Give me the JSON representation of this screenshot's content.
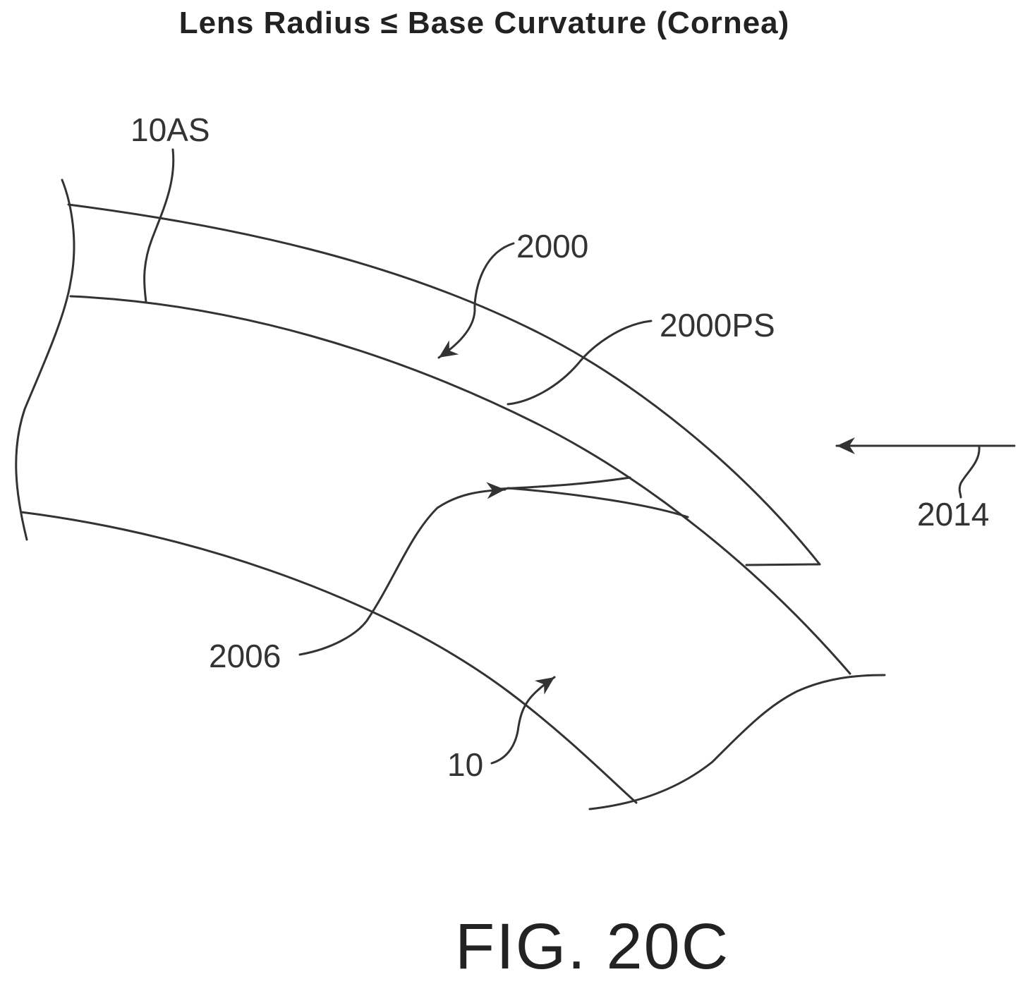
{
  "title": "Lens Radius ≤ Base Curvature (Cornea)",
  "figure_label": "FIG. 20C",
  "labels": {
    "anterior_surface": "10AS",
    "lens": "2000",
    "lens_posterior_surface": "2000PS",
    "arrow_2014": "2014",
    "gap": "2006",
    "cornea": "10"
  }
}
